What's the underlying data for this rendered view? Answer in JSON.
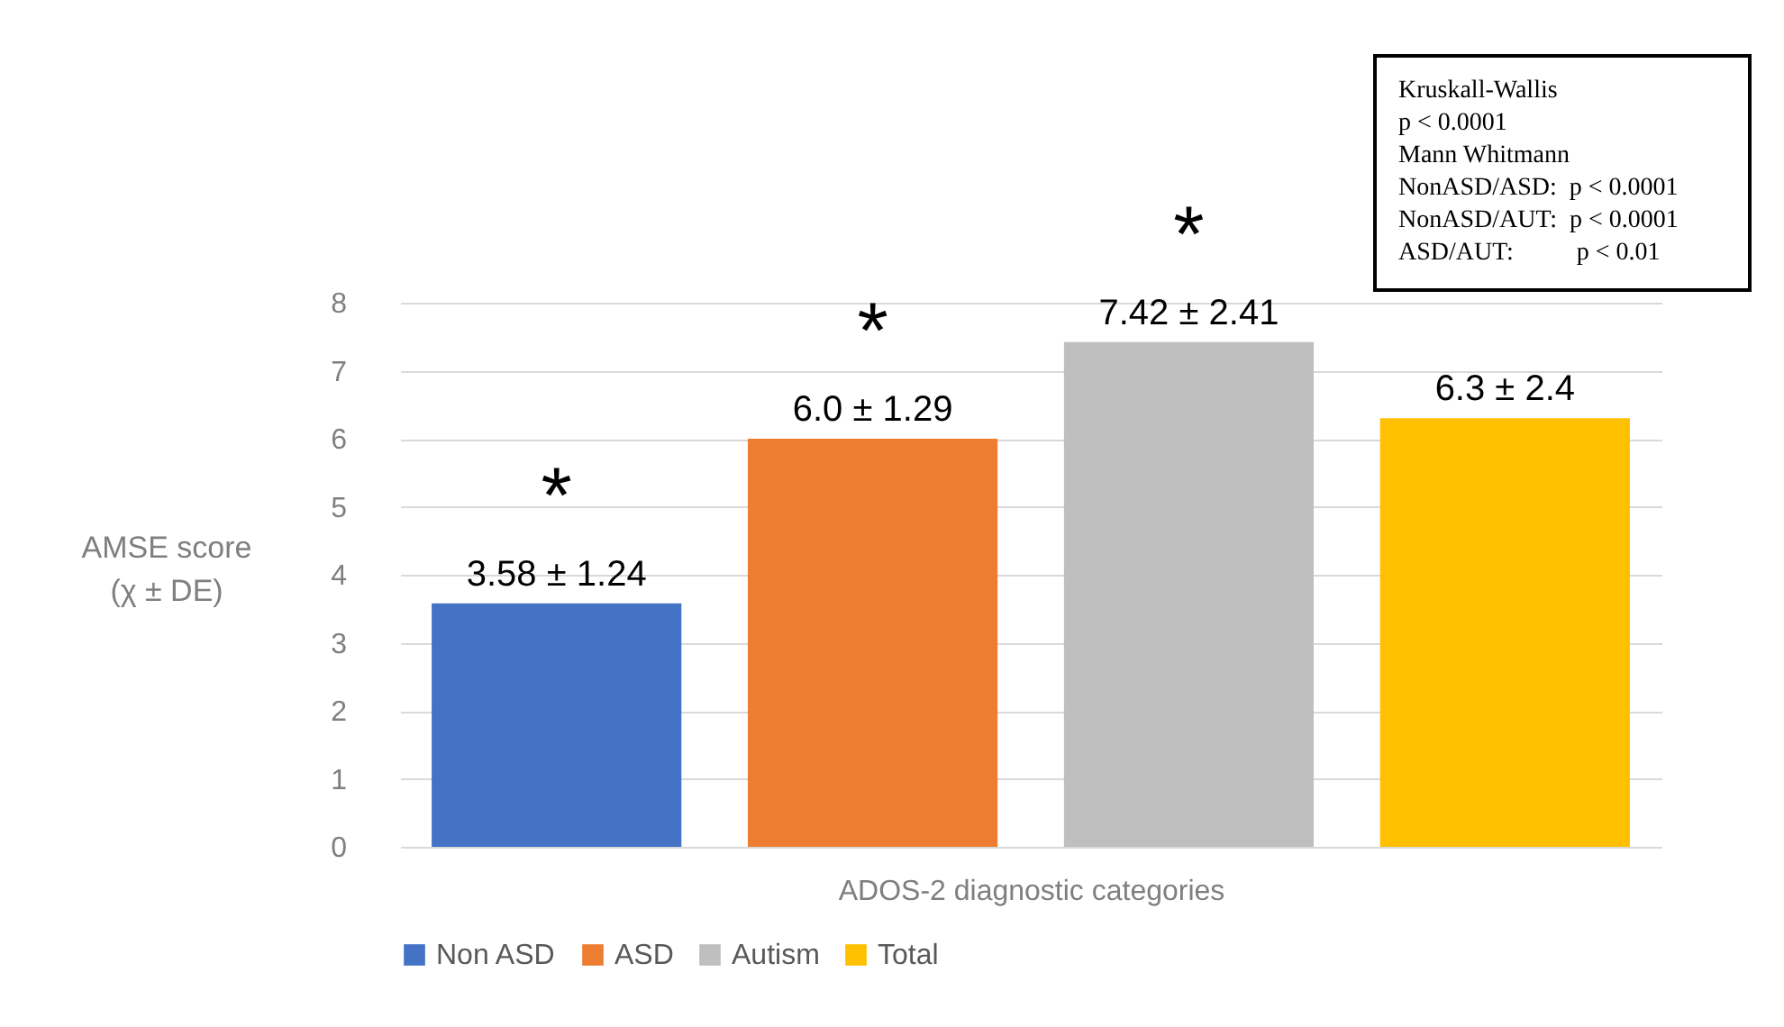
{
  "chart_data": {
    "type": "bar",
    "categories": [
      null,
      null,
      null,
      null
    ],
    "xlabel": "ADOS-2 diagnostic categories",
    "ylabel": "AMSE score\n(χ ± DE)",
    "series": [
      {
        "name": "Non ASD",
        "color": "#4472c4",
        "values": [
          3.58,
          null,
          null,
          null
        ],
        "value_labels": [
          "3.58 ± 1.24",
          null,
          null,
          null
        ]
      },
      {
        "name": "ASD",
        "color": "#ed7d31",
        "values": [
          null,
          6.0,
          null,
          null
        ],
        "value_labels": [
          null,
          "6.0 ± 1.29",
          null,
          null
        ]
      },
      {
        "name": "Autism",
        "color": "#bfbfbf",
        "values": [
          null,
          null,
          7.42,
          null
        ],
        "value_labels": [
          null,
          null,
          "7.42 ± 2.41",
          null
        ]
      },
      {
        "name": "Total",
        "color": "#ffc000",
        "values": [
          null,
          null,
          null,
          6.3
        ],
        "value_labels": [
          null,
          null,
          null,
          "6.3 ± 2.4"
        ]
      }
    ],
    "ylim": [
      0,
      8
    ],
    "yticks": [
      0,
      1,
      2,
      3,
      4,
      5,
      6,
      7,
      8
    ],
    "grid": "y",
    "legend": "bottom",
    "annotations": [
      "*",
      "*",
      "*",
      "Kruskall-Wallis\np < 0.0001\nMann Whitmann\nNonASD/ASD:  p < 0.0001\nNonASD/AUT:  p < 0.0001\nASD/AUT:          p < 0.01"
    ]
  }
}
